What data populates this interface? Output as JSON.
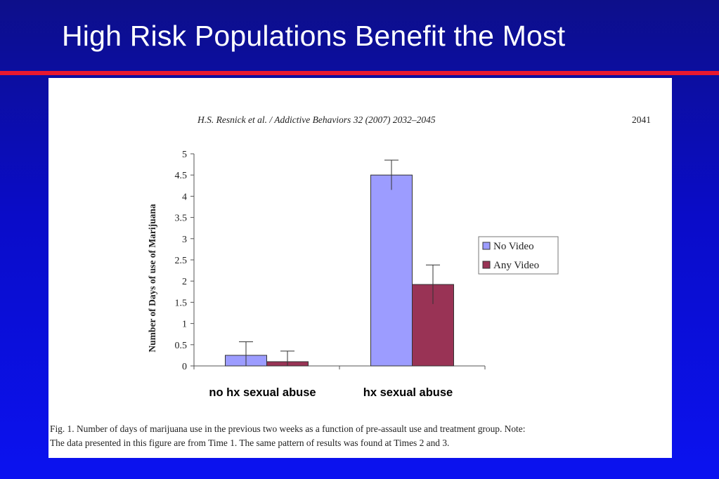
{
  "slide": {
    "title": "High Risk Populations Benefit the Most"
  },
  "figure": {
    "running_head": "H.S. Resnick et al. / Addictive Behaviors 32 (2007) 2032–2045",
    "page_number": "2041",
    "caption_line1": "Fig. 1. Number of days of marijuana use in the previous two weeks as a function of pre-assault use and treatment group. Note:",
    "caption_line2": "The data presented in this figure are from Time 1. The same pattern of results was found at Times 2 and 3."
  },
  "colors": {
    "background": "#0a0cc8",
    "title_rule": "#e8182f",
    "no_video": "#9c9cff",
    "any_video": "#993355"
  },
  "chart_data": {
    "type": "bar",
    "title": "",
    "xlabel": "",
    "ylabel": "Number of Days of use of Marijuana",
    "ylim": [
      0,
      5
    ],
    "yticks": [
      "0",
      "0.5",
      "1",
      "1.5",
      "2",
      "2.5",
      "3",
      "3.5",
      "4",
      "4.5",
      "5"
    ],
    "categories": [
      "no hx sexual abuse",
      "hx sexual abuse"
    ],
    "series": [
      {
        "name": "No Video",
        "values": [
          0.25,
          4.5
        ],
        "error": [
          0.32,
          0.35
        ],
        "color": "#9c9cff"
      },
      {
        "name": "Any Video",
        "values": [
          0.1,
          1.92
        ],
        "error": [
          0.25,
          0.46
        ],
        "color": "#993355"
      }
    ],
    "grid": false,
    "legend": "right"
  }
}
